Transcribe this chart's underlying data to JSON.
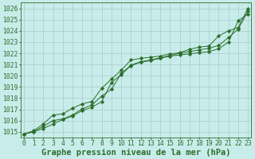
{
  "title": "Graphe pression niveau de la mer (hPa)",
  "background_color": "#c8ece9",
  "grid_color": "#a8cdc8",
  "line_color": "#2d6e2d",
  "xlim": [
    -0.3,
    23.3
  ],
  "ylim": [
    1014.5,
    1026.5
  ],
  "yticks": [
    1015,
    1016,
    1017,
    1018,
    1019,
    1020,
    1021,
    1022,
    1023,
    1024,
    1025,
    1026
  ],
  "xticks": [
    0,
    1,
    2,
    3,
    4,
    5,
    6,
    7,
    8,
    9,
    10,
    11,
    12,
    13,
    14,
    15,
    16,
    17,
    18,
    19,
    20,
    21,
    22,
    23
  ],
  "line1": [
    1014.8,
    1015.0,
    1015.3,
    1015.7,
    1016.1,
    1016.4,
    1016.9,
    1017.2,
    1017.7,
    1019.4,
    1020.1,
    1020.9,
    1021.2,
    1021.35,
    1021.55,
    1021.75,
    1021.85,
    1021.95,
    1022.05,
    1022.15,
    1022.4,
    1023.0,
    1024.9,
    1025.5
  ],
  "line2": [
    1014.8,
    1015.0,
    1015.5,
    1016.0,
    1016.15,
    1016.5,
    1017.05,
    1017.4,
    1018.2,
    1018.8,
    1020.2,
    1020.95,
    1021.25,
    1021.4,
    1021.6,
    1021.8,
    1022.0,
    1022.15,
    1022.3,
    1022.45,
    1022.7,
    1023.4,
    1024.15,
    1025.75
  ],
  "line3": [
    1014.8,
    1015.1,
    1015.7,
    1016.5,
    1016.6,
    1017.1,
    1017.5,
    1017.7,
    1018.9,
    1019.7,
    1020.5,
    1021.4,
    1021.55,
    1021.65,
    1021.75,
    1021.95,
    1022.05,
    1022.35,
    1022.55,
    1022.65,
    1023.55,
    1024.0,
    1024.3,
    1026.0
  ],
  "tick_fontsize": 5.8,
  "xlabel_fontsize": 7.5,
  "marker_size": 2.2,
  "line_width": 0.7
}
